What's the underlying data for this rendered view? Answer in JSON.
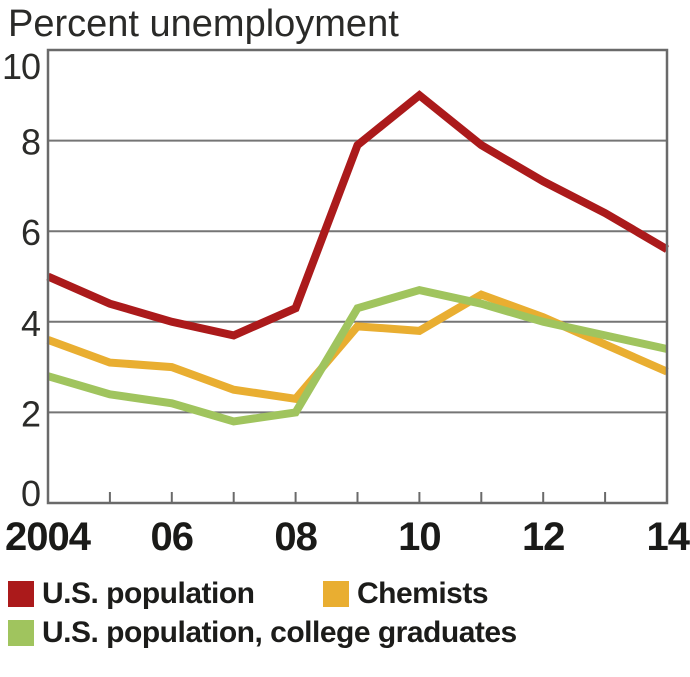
{
  "title": "Percent unemployment",
  "colors": {
    "us_population": "#AB1A1B",
    "chemists": "#E9AE31",
    "college_graduates": "#A0C45E",
    "grid": "#757575",
    "border": "#6A6A6A",
    "axis_text": "#2B2B29",
    "tick_label_text": "#1A1A18"
  },
  "chart_data": {
    "type": "line",
    "title": "Percent unemployment",
    "x": [
      2004,
      2005,
      2006,
      2007,
      2008,
      2009,
      2010,
      2011,
      2012,
      2013,
      2014
    ],
    "x_tick_labels": [
      "2004",
      "06",
      "08",
      "10",
      "12",
      "14"
    ],
    "x_labeled_years": [
      2004,
      2006,
      2008,
      2010,
      2012,
      2014
    ],
    "minor_tick_years": [
      2005,
      2006,
      2007,
      2008,
      2009,
      2010,
      2011,
      2012,
      2013
    ],
    "ylim": [
      0,
      10
    ],
    "yticks": [
      0,
      2,
      4,
      6,
      8,
      10
    ],
    "ytick_labels": [
      "0",
      "2",
      "4",
      "6",
      "8",
      "10"
    ],
    "gridline_values": [
      2,
      4,
      6,
      8
    ],
    "grid": "horizontal",
    "legend_position": "below",
    "series": [
      {
        "name": "U.S. population",
        "color": "#AB1A1B",
        "values": [
          5.0,
          4.4,
          4.0,
          3.7,
          4.3,
          7.9,
          9.0,
          7.9,
          7.1,
          6.4,
          5.6
        ]
      },
      {
        "name": "Chemists",
        "color": "#E9AE31",
        "values": [
          3.6,
          3.1,
          3.0,
          2.5,
          2.3,
          3.9,
          3.8,
          4.6,
          4.1,
          3.5,
          2.9
        ]
      },
      {
        "name": "U.S. population, college graduates",
        "color": "#A0C45E",
        "values": [
          2.8,
          2.4,
          2.2,
          1.8,
          2.0,
          4.3,
          4.7,
          4.4,
          4.0,
          3.7,
          3.4
        ]
      }
    ]
  },
  "legend": {
    "rows": [
      [
        {
          "label": "U.S. population",
          "color": "#AB1A1B"
        },
        {
          "label": "Chemists",
          "color": "#E9AE31"
        }
      ],
      [
        {
          "label": "U.S. population, college graduates",
          "color": "#A0C45E"
        }
      ]
    ]
  }
}
